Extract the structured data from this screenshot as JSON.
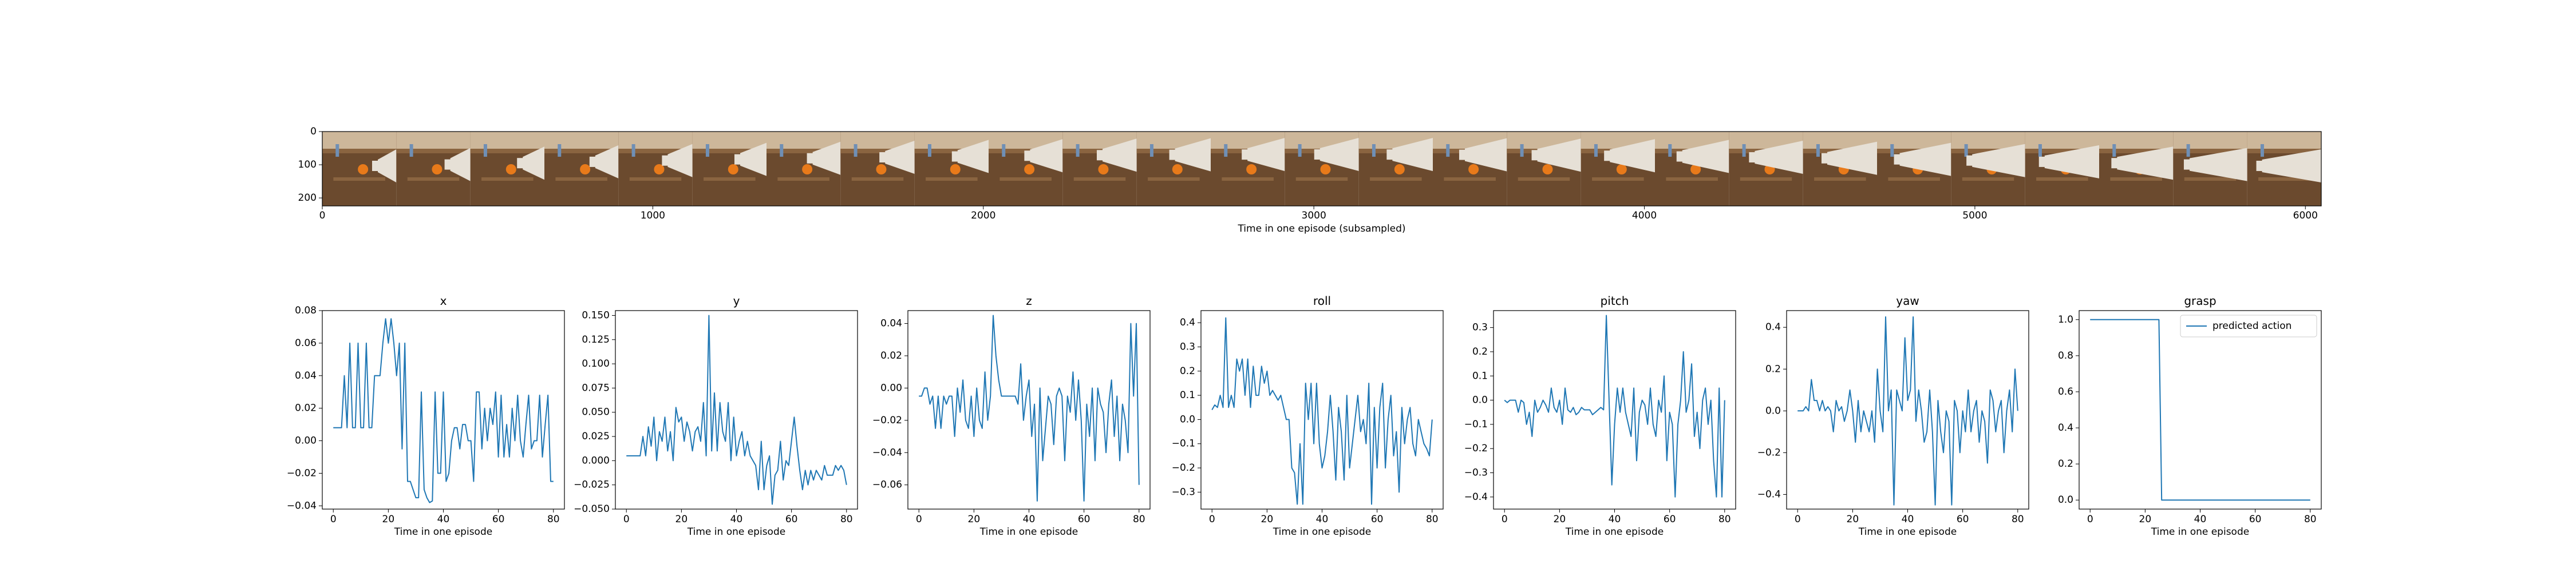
{
  "film_strip": {
    "xlabel": "Time in one episode (subsampled)",
    "x_ticks": [
      0,
      1000,
      2000,
      3000,
      4000,
      5000,
      6000
    ],
    "y_ticks": [
      0,
      100,
      200
    ],
    "xlim": [
      0,
      6048
    ],
    "ylim": [
      224,
      0
    ],
    "frame_count": 27,
    "colors": {
      "tray": "#6b4a2e",
      "tray_light": "#8a6440",
      "back_wall": "#cdb79a",
      "robot_arm": "#e6e0d6",
      "object_orange": "#e87a1a",
      "gripper_blue": "#6f8fb5"
    }
  },
  "chart_data": [
    {
      "type": "line",
      "title": "x",
      "xlabel": "Time in one episode",
      "xlim": [
        -4,
        84
      ],
      "ylim": [
        -0.042,
        0.08
      ],
      "x_ticks": [
        0,
        20,
        40,
        60,
        80
      ],
      "y_ticks": [
        -0.04,
        -0.02,
        0.0,
        0.02,
        0.04,
        0.06,
        0.08
      ],
      "y_tick_labels": [
        "−0.04",
        "−0.02",
        "0.00",
        "0.02",
        "0.04",
        "0.06",
        "0.08"
      ],
      "series": [
        {
          "color": "#1f77b4",
          "values": [
            0.008,
            0.008,
            0.008,
            0.008,
            0.04,
            0.008,
            0.06,
            0.008,
            0.008,
            0.06,
            0.008,
            0.008,
            0.06,
            0.008,
            0.008,
            0.04,
            0.04,
            0.04,
            0.06,
            0.075,
            0.06,
            0.075,
            0.06,
            0.04,
            0.06,
            -0.005,
            0.06,
            -0.025,
            -0.025,
            -0.03,
            -0.035,
            -0.035,
            0.03,
            -0.03,
            -0.035,
            -0.038,
            -0.037,
            0.03,
            -0.02,
            -0.02,
            0.03,
            -0.025,
            -0.02,
            0.0,
            0.008,
            0.008,
            -0.005,
            0.01,
            0.01,
            0.0,
            0.0,
            -0.025,
            0.03,
            0.03,
            -0.005,
            0.02,
            0.0,
            0.02,
            0.01,
            0.03,
            -0.01,
            0.028,
            -0.01,
            0.01,
            -0.01,
            0.02,
            0.0,
            0.028,
            0.0,
            -0.01,
            0.01,
            0.028,
            -0.005,
            0.0,
            0.0,
            0.028,
            -0.01,
            0.01,
            0.028,
            -0.025,
            -0.025
          ]
        }
      ]
    },
    {
      "type": "line",
      "title": "y",
      "xlabel": "Time in one episode",
      "xlim": [
        -4,
        84
      ],
      "ylim": [
        -0.05,
        0.155
      ],
      "x_ticks": [
        0,
        20,
        40,
        60,
        80
      ],
      "y_ticks": [
        -0.05,
        -0.025,
        0.0,
        0.025,
        0.05,
        0.075,
        0.1,
        0.125,
        0.15
      ],
      "y_tick_labels": [
        "−0.050",
        "−0.025",
        "0.000",
        "0.025",
        "0.050",
        "0.075",
        "0.100",
        "0.125",
        "0.150"
      ],
      "series": [
        {
          "color": "#1f77b4",
          "values": [
            0.005,
            0.005,
            0.005,
            0.005,
            0.005,
            0.005,
            0.025,
            0.005,
            0.035,
            0.015,
            0.045,
            0.0,
            0.03,
            0.02,
            0.045,
            0.01,
            0.03,
            0.0,
            0.055,
            0.04,
            0.045,
            0.02,
            0.04,
            0.03,
            0.01,
            0.03,
            0.035,
            0.02,
            0.06,
            0.005,
            0.15,
            0.01,
            0.07,
            0.01,
            0.06,
            0.03,
            0.02,
            0.06,
            0.0,
            0.045,
            0.005,
            0.02,
            0.03,
            0.005,
            0.02,
            0.005,
            0.0,
            -0.005,
            -0.03,
            0.02,
            -0.03,
            -0.005,
            0.005,
            -0.045,
            -0.015,
            -0.01,
            0.02,
            -0.02,
            0.0,
            -0.005,
            0.02,
            0.045,
            0.015,
            -0.01,
            -0.03,
            -0.01,
            -0.025,
            -0.01,
            -0.02,
            -0.01,
            -0.015,
            -0.02,
            -0.005,
            -0.015,
            -0.015,
            -0.015,
            -0.005,
            -0.01,
            -0.005,
            -0.01,
            -0.025
          ]
        }
      ]
    },
    {
      "type": "line",
      "title": "z",
      "xlabel": "Time in one episode",
      "xlim": [
        -4,
        84
      ],
      "ylim": [
        -0.075,
        0.048
      ],
      "x_ticks": [
        0,
        20,
        40,
        60,
        80
      ],
      "y_ticks": [
        -0.06,
        -0.04,
        -0.02,
        0.0,
        0.02,
        0.04
      ],
      "y_tick_labels": [
        "−0.06",
        "−0.04",
        "−0.02",
        "0.00",
        "0.02",
        "0.04"
      ],
      "series": [
        {
          "color": "#1f77b4",
          "values": [
            -0.005,
            -0.005,
            0.0,
            0.0,
            -0.01,
            -0.005,
            -0.025,
            -0.005,
            -0.025,
            -0.005,
            -0.01,
            -0.005,
            -0.005,
            -0.03,
            0.0,
            -0.015,
            0.005,
            -0.02,
            -0.025,
            -0.005,
            -0.03,
            0.0,
            -0.02,
            -0.025,
            0.01,
            -0.02,
            -0.005,
            0.045,
            0.02,
            0.005,
            -0.005,
            -0.005,
            -0.005,
            -0.005,
            -0.005,
            -0.005,
            -0.01,
            0.015,
            -0.02,
            -0.005,
            0.005,
            -0.03,
            -0.01,
            -0.07,
            0.0,
            -0.045,
            -0.025,
            -0.005,
            -0.01,
            -0.035,
            -0.005,
            0.0,
            -0.005,
            -0.045,
            -0.005,
            -0.015,
            0.01,
            -0.02,
            0.005,
            -0.02,
            -0.07,
            -0.01,
            -0.03,
            0.0,
            -0.045,
            0.0,
            -0.01,
            -0.015,
            -0.04,
            -0.01,
            0.005,
            -0.03,
            -0.005,
            -0.045,
            -0.01,
            -0.02,
            -0.04,
            0.04,
            -0.005,
            0.04,
            -0.06
          ]
        }
      ]
    },
    {
      "type": "line",
      "title": "roll",
      "xlabel": "Time in one episode",
      "xlim": [
        -4,
        84
      ],
      "ylim": [
        -0.37,
        0.45
      ],
      "x_ticks": [
        0,
        20,
        40,
        60,
        80
      ],
      "y_ticks": [
        -0.3,
        -0.2,
        -0.1,
        0.0,
        0.1,
        0.2,
        0.3,
        0.4
      ],
      "y_tick_labels": [
        "−0.3",
        "−0.2",
        "−0.1",
        "0.0",
        "0.1",
        "0.2",
        "0.3",
        "0.4"
      ],
      "series": [
        {
          "color": "#1f77b4",
          "values": [
            0.04,
            0.06,
            0.05,
            0.1,
            0.05,
            0.42,
            0.05,
            0.1,
            0.05,
            0.25,
            0.2,
            0.25,
            0.1,
            0.25,
            0.05,
            0.22,
            0.1,
            0.1,
            0.22,
            0.15,
            0.2,
            0.1,
            0.12,
            0.1,
            0.08,
            0.1,
            0.05,
            0.0,
            0.0,
            -0.2,
            -0.22,
            -0.35,
            -0.1,
            -0.35,
            0.15,
            0.0,
            0.15,
            -0.1,
            0.15,
            -0.1,
            -0.2,
            -0.15,
            -0.05,
            0.1,
            -0.05,
            -0.25,
            0.05,
            -0.05,
            -0.25,
            0.1,
            -0.2,
            -0.1,
            0.0,
            0.1,
            -0.05,
            0.0,
            -0.1,
            0.15,
            -0.35,
            0.05,
            -0.2,
            0.05,
            0.15,
            -0.2,
            0.0,
            0.1,
            -0.15,
            -0.05,
            -0.3,
            0.05,
            -0.1,
            0.0,
            0.05,
            -0.1,
            -0.15,
            0.0,
            -0.05,
            -0.1,
            -0.12,
            -0.15,
            0.0
          ]
        }
      ]
    },
    {
      "type": "line",
      "title": "pitch",
      "xlabel": "Time in one episode",
      "xlim": [
        -4,
        84
      ],
      "ylim": [
        -0.45,
        0.37
      ],
      "x_ticks": [
        0,
        20,
        40,
        60,
        80
      ],
      "y_ticks": [
        -0.4,
        -0.3,
        -0.2,
        -0.1,
        0.0,
        0.1,
        0.2,
        0.3
      ],
      "y_tick_labels": [
        "−0.4",
        "−0.3",
        "−0.2",
        "−0.1",
        "0.0",
        "0.1",
        "0.2",
        "0.3"
      ],
      "series": [
        {
          "color": "#1f77b4",
          "values": [
            0.0,
            -0.01,
            0.0,
            0.0,
            0.0,
            -0.05,
            0.0,
            -0.01,
            -0.1,
            -0.05,
            -0.15,
            0.0,
            -0.05,
            -0.03,
            0.0,
            -0.02,
            -0.05,
            0.05,
            -0.03,
            -0.05,
            0.0,
            -0.1,
            0.05,
            -0.04,
            -0.05,
            -0.03,
            -0.06,
            -0.05,
            -0.03,
            -0.04,
            -0.04,
            -0.04,
            -0.06,
            -0.05,
            -0.04,
            -0.03,
            -0.04,
            0.35,
            0.0,
            -0.35,
            -0.1,
            0.05,
            -0.05,
            0.05,
            -0.05,
            -0.1,
            -0.15,
            0.05,
            -0.25,
            -0.05,
            0.0,
            -0.02,
            -0.1,
            0.05,
            -0.1,
            -0.15,
            0.0,
            -0.05,
            0.1,
            -0.25,
            -0.05,
            -0.1,
            -0.4,
            -0.1,
            0.0,
            0.2,
            -0.05,
            0.0,
            0.15,
            -0.15,
            -0.05,
            -0.2,
            0.0,
            0.05,
            -0.1,
            0.0,
            -0.25,
            -0.4,
            0.05,
            -0.4,
            0.0
          ]
        }
      ]
    },
    {
      "type": "line",
      "title": "yaw",
      "xlabel": "Time in one episode",
      "xlim": [
        -4,
        84
      ],
      "ylim": [
        -0.47,
        0.48
      ],
      "x_ticks": [
        0,
        20,
        40,
        60,
        80
      ],
      "y_ticks": [
        -0.4,
        -0.2,
        0.0,
        0.2,
        0.4
      ],
      "y_tick_labels": [
        "−0.4",
        "−0.2",
        "0.0",
        "0.2",
        "0.4"
      ],
      "series": [
        {
          "color": "#1f77b4",
          "values": [
            0.0,
            0.0,
            0.0,
            0.02,
            0.0,
            0.15,
            0.05,
            0.05,
            0.0,
            0.05,
            0.0,
            0.02,
            0.0,
            -0.1,
            0.05,
            0.0,
            0.02,
            -0.05,
            0.0,
            0.1,
            0.0,
            -0.15,
            0.05,
            -0.1,
            0.0,
            -0.05,
            -0.1,
            0.0,
            -0.15,
            0.2,
            0.0,
            -0.1,
            0.45,
            0.0,
            0.1,
            -0.45,
            0.1,
            0.05,
            0.0,
            0.35,
            0.05,
            0.1,
            0.45,
            -0.05,
            0.1,
            0.0,
            -0.15,
            -0.1,
            0.1,
            -0.1,
            -0.45,
            0.05,
            -0.1,
            -0.2,
            0.0,
            -0.05,
            -0.45,
            0.05,
            0.0,
            -0.2,
            0.0,
            -0.1,
            0.1,
            -0.1,
            0.0,
            0.05,
            -0.15,
            0.0,
            -0.05,
            -0.25,
            0.1,
            0.05,
            -0.1,
            0.0,
            0.05,
            -0.2,
            0.0,
            0.1,
            -0.1,
            0.2,
            0.0
          ]
        }
      ]
    },
    {
      "type": "line",
      "title": "grasp",
      "xlabel": "Time in one episode",
      "xlim": [
        -4,
        84
      ],
      "ylim": [
        -0.05,
        1.05
      ],
      "x_ticks": [
        0,
        20,
        40,
        60,
        80
      ],
      "y_ticks": [
        0.0,
        0.2,
        0.4,
        0.6,
        0.8,
        1.0
      ],
      "y_tick_labels": [
        "0.0",
        "0.2",
        "0.4",
        "0.6",
        "0.8",
        "1.0"
      ],
      "legend": "upper right",
      "series": [
        {
          "name": "predicted action",
          "color": "#1f77b4",
          "values": [
            1,
            1,
            1,
            1,
            1,
            1,
            1,
            1,
            1,
            1,
            1,
            1,
            1,
            1,
            1,
            1,
            1,
            1,
            1,
            1,
            1,
            1,
            1,
            1,
            1,
            1,
            0,
            0,
            0,
            0,
            0,
            0,
            0,
            0,
            0,
            0,
            0,
            0,
            0,
            0,
            0,
            0,
            0,
            0,
            0,
            0,
            0,
            0,
            0,
            0,
            0,
            0,
            0,
            0,
            0,
            0,
            0,
            0,
            0,
            0,
            0,
            0,
            0,
            0,
            0,
            0,
            0,
            0,
            0,
            0,
            0,
            0,
            0,
            0,
            0,
            0,
            0,
            0,
            0,
            0,
            0
          ]
        }
      ]
    }
  ]
}
